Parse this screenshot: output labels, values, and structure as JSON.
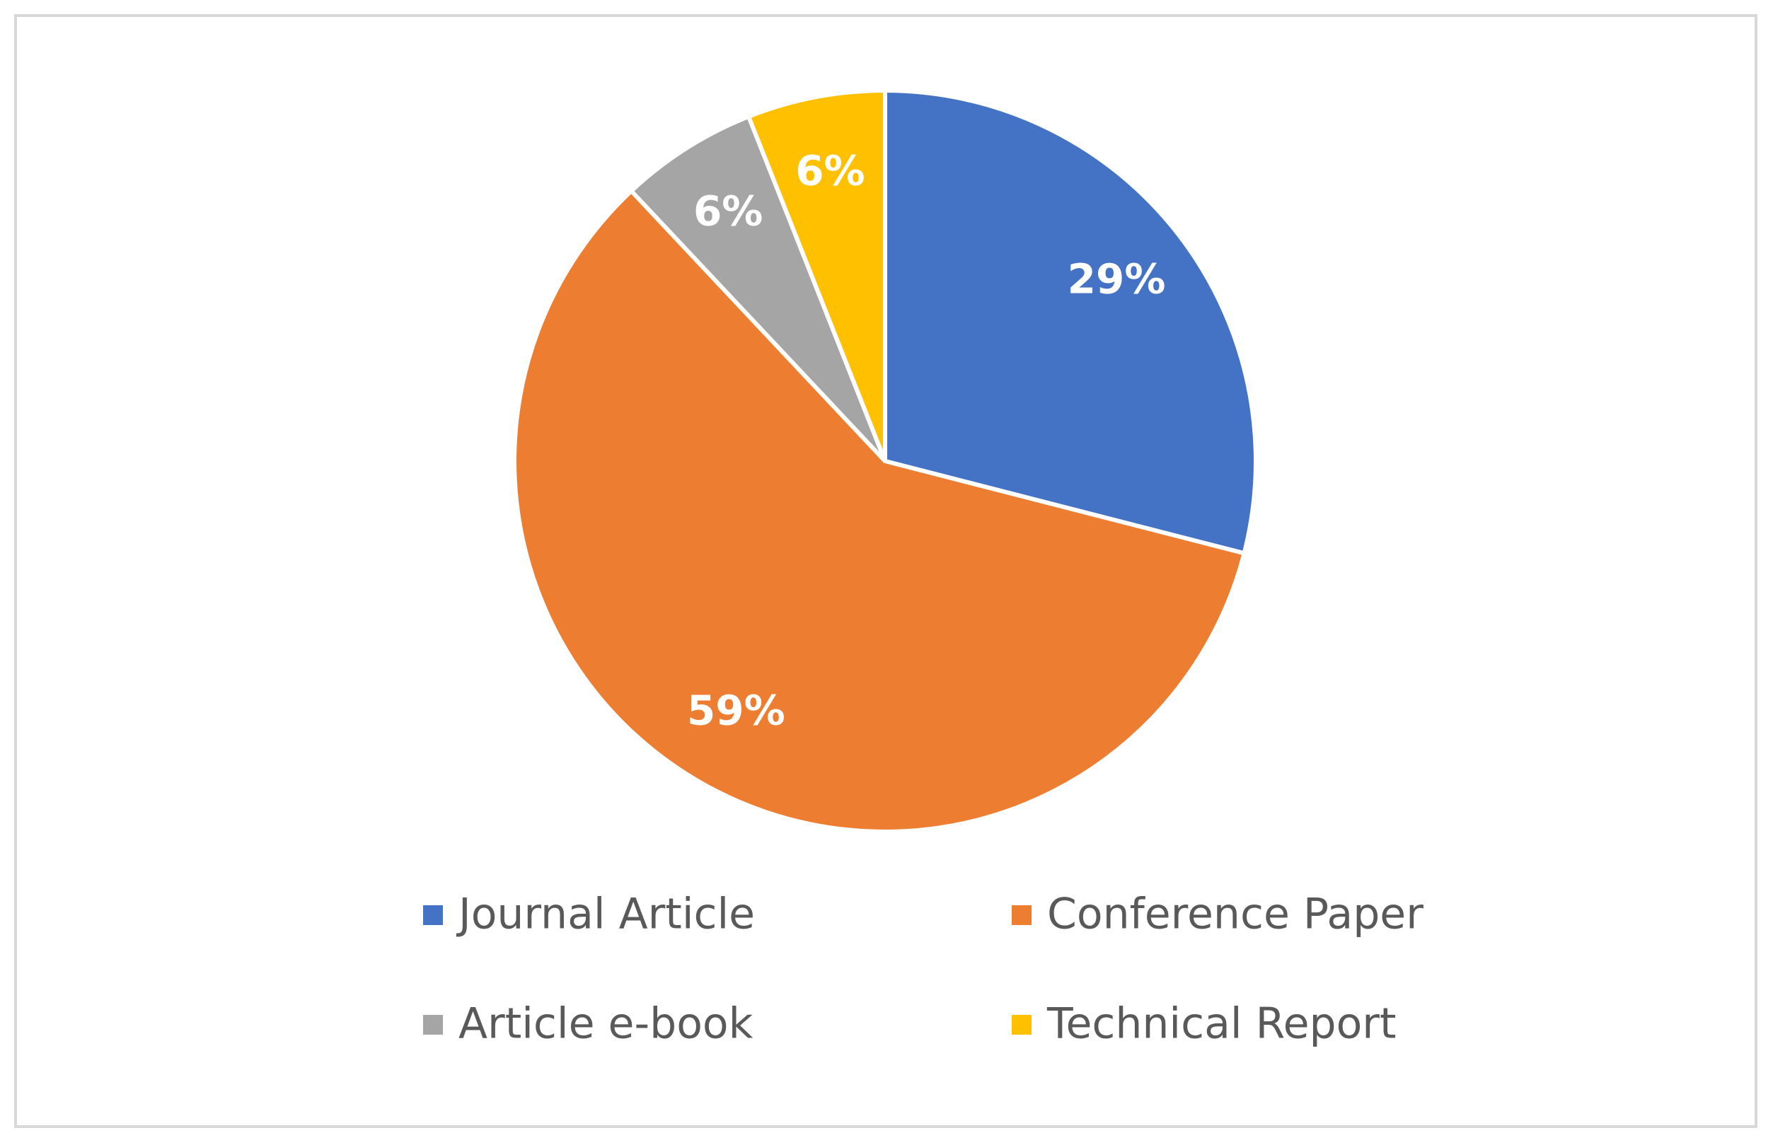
{
  "chart_data": {
    "type": "pie",
    "categories": [
      "Journal Article",
      "Conference Paper",
      "Article e-book",
      "Technical Report"
    ],
    "values": [
      29,
      59,
      6,
      6
    ],
    "value_labels": [
      "29%",
      "59%",
      "6%",
      "6%"
    ],
    "colors": [
      "#4472c4",
      "#ed7d31",
      "#a5a5a5",
      "#ffc000"
    ]
  }
}
